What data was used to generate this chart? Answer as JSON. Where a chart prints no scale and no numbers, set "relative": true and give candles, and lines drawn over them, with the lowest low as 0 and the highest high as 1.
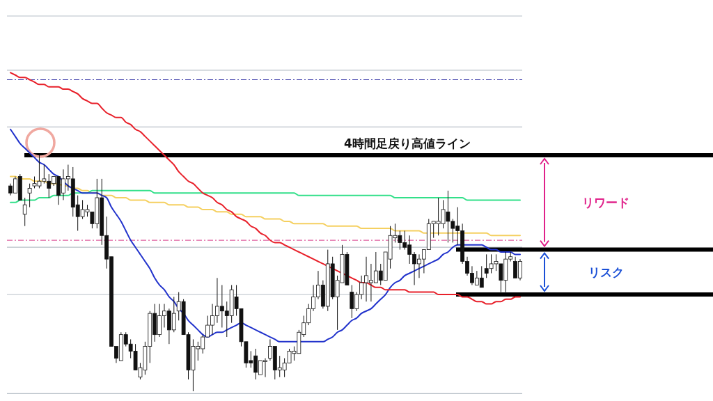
{
  "chart_data": {
    "type": "candlestick",
    "relative": true,
    "categories": [
      null,
      null,
      null,
      null,
      null,
      null,
      null,
      null,
      null,
      null,
      null,
      null,
      null,
      null,
      null,
      null,
      null,
      null,
      null,
      null,
      null,
      null,
      null,
      null,
      null,
      null,
      null,
      null,
      null,
      null,
      null,
      null,
      null,
      null,
      null,
      null,
      null,
      null,
      null,
      null,
      null,
      null,
      null,
      null,
      null,
      null,
      null,
      null,
      null,
      null,
      null,
      null,
      null,
      null,
      null,
      null,
      null,
      null,
      null,
      null,
      null,
      null,
      null,
      null,
      null,
      null,
      null,
      null,
      null,
      null,
      null,
      null,
      null,
      null,
      null,
      null,
      null,
      null,
      null,
      null,
      null,
      null,
      null,
      null,
      null,
      null,
      null,
      null,
      null,
      null,
      null,
      null,
      null,
      null,
      null,
      null,
      null,
      null,
      null,
      null,
      null,
      null,
      null,
      null,
      null,
      null,
      null
    ],
    "ohlc": [
      [
        0.87,
        0.88,
        0.83,
        0.84
      ],
      [
        0.84,
        0.91,
        0.84,
        0.9
      ],
      [
        0.91,
        0.92,
        0.81,
        0.81
      ],
      [
        0.75,
        0.82,
        0.7,
        0.79
      ],
      [
        0.84,
        0.88,
        0.78,
        0.86
      ],
      [
        0.87,
        0.91,
        0.86,
        0.88
      ],
      [
        0.87,
        1.0,
        0.86,
        0.89
      ],
      [
        0.89,
        0.96,
        0.88,
        0.9
      ],
      [
        0.89,
        0.92,
        0.82,
        0.86
      ],
      [
        0.88,
        0.91,
        0.87,
        0.91
      ],
      [
        0.91,
        0.91,
        0.79,
        0.83
      ],
      [
        0.84,
        0.94,
        0.81,
        0.9
      ],
      [
        0.9,
        0.96,
        0.85,
        0.91
      ],
      [
        0.9,
        0.95,
        0.74,
        0.78
      ],
      [
        0.79,
        0.83,
        0.68,
        0.74
      ],
      [
        0.74,
        0.81,
        0.73,
        0.77
      ],
      [
        0.76,
        0.79,
        0.74,
        0.77
      ],
      [
        0.76,
        0.76,
        0.69,
        0.71
      ],
      [
        0.71,
        0.9,
        0.69,
        0.82
      ],
      [
        0.82,
        0.9,
        0.62,
        0.66
      ],
      [
        0.66,
        0.74,
        0.52,
        0.56
      ],
      [
        0.57,
        0.57,
        0.19,
        0.19
      ],
      [
        0.19,
        0.19,
        0.12,
        0.14
      ],
      [
        0.13,
        0.25,
        0.13,
        0.24
      ],
      [
        0.24,
        0.25,
        0.19,
        0.2
      ],
      [
        0.2,
        0.22,
        0.14,
        0.17
      ],
      [
        0.17,
        0.2,
        0.09,
        0.09
      ],
      [
        0.06,
        0.12,
        0.05,
        0.1
      ],
      [
        0.09,
        0.21,
        0.07,
        0.19
      ],
      [
        0.19,
        0.34,
        0.12,
        0.33
      ],
      [
        0.33,
        0.37,
        0.21,
        0.24
      ],
      [
        0.24,
        0.37,
        0.23,
        0.32
      ],
      [
        0.32,
        0.37,
        0.27,
        0.34
      ],
      [
        0.34,
        0.35,
        0.2,
        0.26
      ],
      [
        0.26,
        0.4,
        0.25,
        0.33
      ],
      [
        0.34,
        0.42,
        0.3,
        0.38
      ],
      [
        0.38,
        0.39,
        0.24,
        0.24
      ],
      [
        0.24,
        0.25,
        0.05,
        0.09
      ],
      [
        0.09,
        0.22,
        0.0,
        0.19
      ],
      [
        0.18,
        0.21,
        0.13,
        0.19
      ],
      [
        0.18,
        0.24,
        0.16,
        0.23
      ],
      [
        0.23,
        0.32,
        0.23,
        0.28
      ],
      [
        0.28,
        0.37,
        0.24,
        0.32
      ],
      [
        0.32,
        0.48,
        0.29,
        0.36
      ],
      [
        0.36,
        0.45,
        0.27,
        0.34
      ],
      [
        0.34,
        0.38,
        0.23,
        0.32
      ],
      [
        0.32,
        0.45,
        0.29,
        0.43
      ],
      [
        0.4,
        0.45,
        0.32,
        0.35
      ],
      [
        0.35,
        0.35,
        0.19,
        0.21
      ],
      [
        0.21,
        0.21,
        0.1,
        0.12
      ],
      [
        0.13,
        0.17,
        0.1,
        0.12
      ],
      [
        0.15,
        0.18,
        0.05,
        0.08
      ],
      [
        0.07,
        0.13,
        0.07,
        0.13
      ],
      [
        0.13,
        0.14,
        0.06,
        0.13
      ],
      [
        0.14,
        0.22,
        0.13,
        0.19
      ],
      [
        0.19,
        0.19,
        0.05,
        0.09
      ],
      [
        0.09,
        0.15,
        0.06,
        0.1
      ],
      [
        0.09,
        0.14,
        0.06,
        0.12
      ],
      [
        0.12,
        0.18,
        0.12,
        0.17
      ],
      [
        0.16,
        0.19,
        0.13,
        0.17
      ],
      [
        0.16,
        0.26,
        0.16,
        0.25
      ],
      [
        0.24,
        0.32,
        0.23,
        0.29
      ],
      [
        0.29,
        0.37,
        0.28,
        0.35
      ],
      [
        0.35,
        0.45,
        0.34,
        0.4
      ],
      [
        0.4,
        0.51,
        0.39,
        0.45
      ],
      [
        0.45,
        0.47,
        0.35,
        0.36
      ],
      [
        0.36,
        0.6,
        0.34,
        0.54
      ],
      [
        0.54,
        0.57,
        0.39,
        0.4
      ],
      [
        0.4,
        0.49,
        0.26,
        0.47
      ],
      [
        0.46,
        0.62,
        0.46,
        0.58
      ],
      [
        0.58,
        0.59,
        0.45,
        0.45
      ],
      [
        0.42,
        0.45,
        0.31,
        0.35
      ],
      [
        0.35,
        0.42,
        0.34,
        0.41
      ],
      [
        0.41,
        0.49,
        0.39,
        0.46
      ],
      [
        0.46,
        0.57,
        0.38,
        0.49
      ],
      [
        0.46,
        0.54,
        0.38,
        0.47
      ],
      [
        0.46,
        0.59,
        0.46,
        0.51
      ],
      [
        0.51,
        0.54,
        0.45,
        0.47
      ],
      [
        0.47,
        0.59,
        0.47,
        0.59
      ],
      [
        0.56,
        0.7,
        0.52,
        0.66
      ],
      [
        0.65,
        0.71,
        0.63,
        0.66
      ],
      [
        0.66,
        0.68,
        0.6,
        0.63
      ],
      [
        0.63,
        0.68,
        0.6,
        0.61
      ],
      [
        0.62,
        0.66,
        0.54,
        0.58
      ],
      [
        0.58,
        0.59,
        0.45,
        0.54
      ],
      [
        0.54,
        0.58,
        0.48,
        0.56
      ],
      [
        0.56,
        0.6,
        0.5,
        0.6
      ],
      [
        0.6,
        0.73,
        0.6,
        0.71
      ],
      [
        0.71,
        0.72,
        0.65,
        0.72
      ],
      [
        0.71,
        0.82,
        0.66,
        0.72
      ],
      [
        0.71,
        0.81,
        0.69,
        0.77
      ],
      [
        0.76,
        0.85,
        0.63,
        0.72
      ],
      [
        0.72,
        0.73,
        0.63,
        0.69
      ],
      [
        0.7,
        0.78,
        0.62,
        0.68
      ],
      [
        0.68,
        0.71,
        0.54,
        0.55
      ],
      [
        0.55,
        0.57,
        0.49,
        0.5
      ],
      [
        0.5,
        0.53,
        0.45,
        0.46
      ],
      [
        0.45,
        0.51,
        0.45,
        0.48
      ],
      [
        0.48,
        0.53,
        0.44,
        0.44
      ],
      [
        0.52,
        0.58,
        0.48,
        0.5
      ],
      [
        0.52,
        0.58,
        0.5,
        0.54
      ],
      [
        0.54,
        0.58,
        0.51,
        0.55
      ],
      [
        0.54,
        0.54,
        0.42,
        0.47
      ],
      [
        0.47,
        0.59,
        0.42,
        0.56
      ],
      [
        0.56,
        0.59,
        0.55,
        0.57
      ],
      [
        0.55,
        0.57,
        0.48,
        0.48
      ],
      [
        0.48,
        0.56,
        0.47,
        0.55
      ]
    ],
    "series": [
      {
        "type": "line",
        "color": "#e8202a",
        "values": [
          1.35,
          1.34,
          1.33,
          1.33,
          1.32,
          1.31,
          1.3,
          1.3,
          1.29,
          1.29,
          1.29,
          1.28,
          1.28,
          1.27,
          1.26,
          1.24,
          1.23,
          1.22,
          1.22,
          1.2,
          1.18,
          1.17,
          1.16,
          1.16,
          1.14,
          1.13,
          1.11,
          1.1,
          1.08,
          1.06,
          1.04,
          1.02,
          1.0,
          0.98,
          0.96,
          0.93,
          0.91,
          0.89,
          0.88,
          0.86,
          0.84,
          0.83,
          0.82,
          0.8,
          0.79,
          0.77,
          0.76,
          0.74,
          0.73,
          0.72,
          0.7,
          0.69,
          0.67,
          0.66,
          0.64,
          0.63,
          0.63,
          0.62,
          0.61,
          0.6,
          0.59,
          0.58,
          0.57,
          0.56,
          0.55,
          0.54,
          0.53,
          0.52,
          0.51,
          0.5,
          0.49,
          0.48,
          0.47,
          0.46,
          0.46,
          0.45,
          0.44,
          0.44,
          0.43,
          0.43,
          0.43,
          0.43,
          0.43,
          0.42,
          0.42,
          0.42,
          0.42,
          0.42,
          0.42,
          0.41,
          0.41,
          0.41,
          0.41,
          0.41,
          0.4,
          0.4,
          0.39,
          0.38,
          0.38,
          0.37,
          0.37,
          0.38,
          0.38,
          0.39,
          0.39,
          0.4,
          0.4
        ]
      },
      {
        "type": "line",
        "color": "#2233cc",
        "values": [
          1.11,
          1.08,
          1.05,
          1.03,
          1.01,
          0.99,
          0.97,
          0.96,
          0.94,
          0.92,
          0.91,
          0.89,
          0.87,
          0.86,
          0.85,
          0.84,
          0.84,
          0.84,
          0.84,
          0.83,
          0.82,
          0.78,
          0.75,
          0.72,
          0.68,
          0.64,
          0.61,
          0.58,
          0.55,
          0.52,
          0.48,
          0.45,
          0.43,
          0.4,
          0.38,
          0.35,
          0.33,
          0.3,
          0.28,
          0.26,
          0.24,
          0.23,
          0.24,
          0.25,
          0.25,
          0.26,
          0.27,
          0.28,
          0.29,
          0.28,
          0.27,
          0.26,
          0.25,
          0.24,
          0.23,
          0.22,
          0.21,
          0.21,
          0.21,
          0.21,
          0.21,
          0.21,
          0.21,
          0.21,
          0.21,
          0.21,
          0.22,
          0.23,
          0.25,
          0.26,
          0.28,
          0.3,
          0.31,
          0.33,
          0.34,
          0.35,
          0.37,
          0.39,
          0.41,
          0.44,
          0.46,
          0.47,
          0.49,
          0.5,
          0.51,
          0.52,
          0.53,
          0.54,
          0.55,
          0.56,
          0.58,
          0.59,
          0.61,
          0.62,
          0.62,
          0.62,
          0.62,
          0.62,
          0.62,
          0.61,
          0.6,
          0.6,
          0.59,
          0.59,
          0.59,
          0.58,
          0.58
        ]
      },
      {
        "type": "line",
        "color": "#33e08a",
        "values": [
          0.8,
          0.8,
          0.81,
          0.81,
          0.81,
          0.81,
          0.82,
          0.82,
          0.82,
          0.83,
          0.83,
          0.83,
          0.83,
          0.84,
          0.84,
          0.84,
          0.84,
          0.85,
          0.85,
          0.85,
          0.85,
          0.85,
          0.85,
          0.85,
          0.85,
          0.85,
          0.85,
          0.85,
          0.85,
          0.85,
          0.84,
          0.84,
          0.84,
          0.84,
          0.84,
          0.84,
          0.84,
          0.84,
          0.84,
          0.84,
          0.84,
          0.84,
          0.84,
          0.84,
          0.84,
          0.84,
          0.84,
          0.84,
          0.84,
          0.84,
          0.84,
          0.84,
          0.84,
          0.84,
          0.84,
          0.84,
          0.84,
          0.84,
          0.84,
          0.84,
          0.83,
          0.83,
          0.83,
          0.83,
          0.83,
          0.83,
          0.83,
          0.83,
          0.83,
          0.83,
          0.83,
          0.83,
          0.83,
          0.83,
          0.83,
          0.83,
          0.83,
          0.83,
          0.83,
          0.83,
          0.82,
          0.82,
          0.82,
          0.82,
          0.82,
          0.82,
          0.82,
          0.82,
          0.82,
          0.82,
          0.82,
          0.82,
          0.82,
          0.82,
          0.82,
          0.81,
          0.81,
          0.81,
          0.81,
          0.81,
          0.81,
          0.81,
          0.81,
          0.81,
          0.81,
          0.81,
          0.81
        ]
      },
      {
        "type": "line",
        "color": "#f5d060",
        "values": [
          0.91,
          0.91,
          0.9,
          0.9,
          0.9,
          0.89,
          0.89,
          0.89,
          0.88,
          0.88,
          0.88,
          0.87,
          0.87,
          0.86,
          0.86,
          0.85,
          0.85,
          0.84,
          0.84,
          0.83,
          0.83,
          0.83,
          0.82,
          0.82,
          0.82,
          0.81,
          0.81,
          0.81,
          0.81,
          0.8,
          0.8,
          0.8,
          0.8,
          0.79,
          0.79,
          0.79,
          0.79,
          0.78,
          0.78,
          0.78,
          0.77,
          0.77,
          0.77,
          0.76,
          0.76,
          0.76,
          0.75,
          0.75,
          0.75,
          0.74,
          0.74,
          0.74,
          0.74,
          0.73,
          0.73,
          0.73,
          0.73,
          0.72,
          0.72,
          0.71,
          0.71,
          0.71,
          0.71,
          0.71,
          0.71,
          0.71,
          0.7,
          0.7,
          0.7,
          0.7,
          0.7,
          0.7,
          0.7,
          0.69,
          0.69,
          0.69,
          0.69,
          0.69,
          0.69,
          0.69,
          0.68,
          0.68,
          0.68,
          0.68,
          0.68,
          0.68,
          0.67,
          0.67,
          0.67,
          0.67,
          0.67,
          0.67,
          0.67,
          0.67,
          0.67,
          0.67,
          0.67,
          0.67,
          0.67,
          0.67,
          0.66,
          0.66,
          0.66,
          0.66,
          0.66,
          0.66,
          0.66
        ]
      }
    ],
    "ref_lines": [
      {
        "axis": "y",
        "value": 1.59,
        "color": "#b8c0c8",
        "line_style": "solid"
      },
      {
        "axis": "y",
        "value": 1.36,
        "color": "#b8c0c8",
        "line_style": "solid"
      },
      {
        "axis": "y",
        "value": 1.32,
        "color": "#3a3aa8",
        "line_style": "dashed"
      },
      {
        "axis": "y",
        "value": 1.12,
        "color": "#b8c0c8",
        "line_style": "solid"
      },
      {
        "axis": "y",
        "value": 0.64,
        "color": "#e060a0",
        "line_style": "dashed"
      },
      {
        "axis": "y",
        "value": 0.61,
        "color": "#b8c0c8",
        "line_style": "solid"
      },
      {
        "axis": "y",
        "value": 0.41,
        "color": "#b8c0c8",
        "line_style": "solid"
      },
      {
        "axis": "y",
        "value": -0.01,
        "color": "#b8c0c8",
        "line_style": "solid"
      },
      {
        "axis": "y",
        "value": 1.0,
        "color": "#000000",
        "line_style": "solid",
        "label": "4時間足戻り高値ライン"
      },
      {
        "axis": "y",
        "value": 0.6,
        "color": "#000000",
        "line_style": "solid"
      },
      {
        "axis": "y",
        "value": 0.41,
        "color": "#000000",
        "line_style": "solid"
      }
    ],
    "annotations": [
      "リワード",
      "リスク"
    ]
  }
}
